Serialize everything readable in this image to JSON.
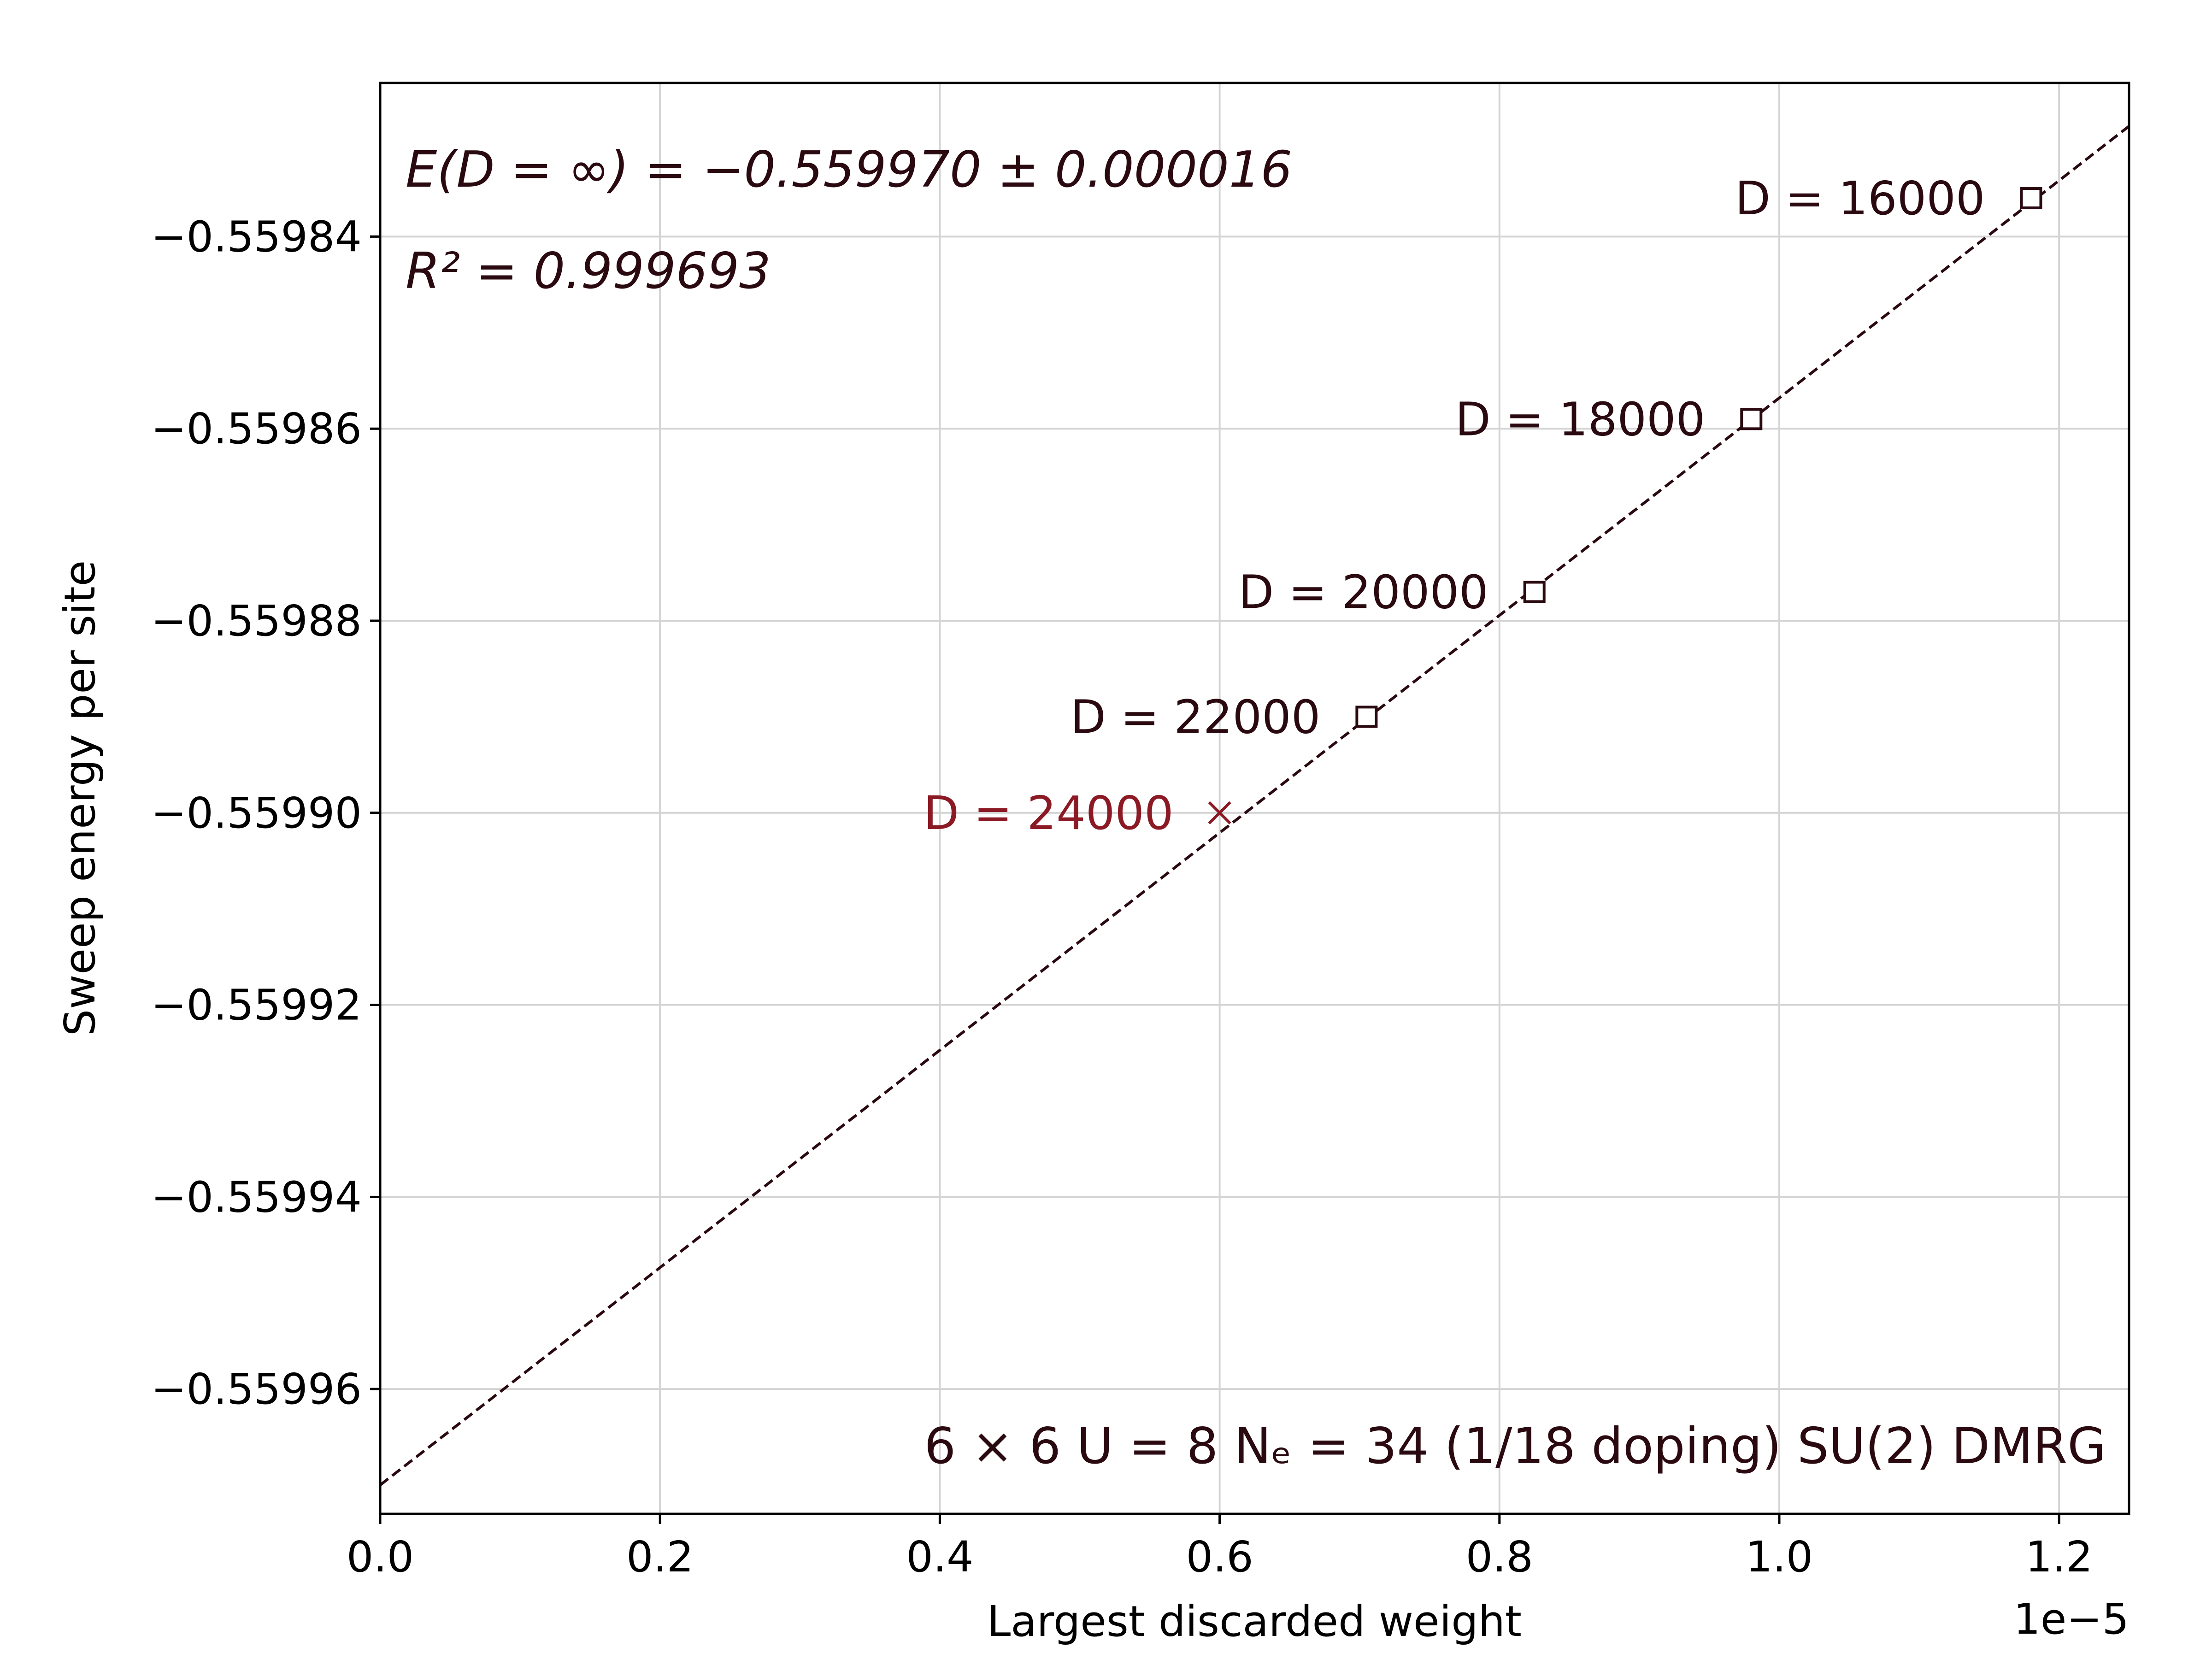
{
  "chart_data": {
    "type": "scatter",
    "xlabel": "Largest discarded weight",
    "ylabel": "Sweep energy per site",
    "x_offset_label": "1e−5",
    "xlim": [
      0.0,
      1.25e-05
    ],
    "ylim": [
      -0.559973,
      -0.559824
    ],
    "grid": true,
    "x_ticks": [
      {
        "value": 0.0,
        "label": "0.0"
      },
      {
        "value": 2e-06,
        "label": "0.2"
      },
      {
        "value": 4e-06,
        "label": "0.4"
      },
      {
        "value": 6e-06,
        "label": "0.6"
      },
      {
        "value": 8e-06,
        "label": "0.8"
      },
      {
        "value": 1e-05,
        "label": "1.0"
      },
      {
        "value": 1.2e-05,
        "label": "1.2"
      }
    ],
    "y_ticks": [
      {
        "value": -0.55984,
        "label": "−0.55984"
      },
      {
        "value": -0.55986,
        "label": "−0.55986"
      },
      {
        "value": -0.55988,
        "label": "−0.55988"
      },
      {
        "value": -0.5599,
        "label": "−0.55990"
      },
      {
        "value": -0.55992,
        "label": "−0.55992"
      },
      {
        "value": -0.55994,
        "label": "−0.55994"
      },
      {
        "value": -0.55996,
        "label": "−0.55996"
      }
    ],
    "series": [
      {
        "marker": "square",
        "color": "#2a0a10",
        "points": [
          {
            "x": 1.18e-05,
            "y": -0.559836,
            "label": "D = 16000"
          },
          {
            "x": 9.8e-06,
            "y": -0.559859,
            "label": "D = 18000"
          },
          {
            "x": 8.25e-06,
            "y": -0.559877,
            "label": "D = 20000"
          },
          {
            "x": 7.05e-06,
            "y": -0.55989,
            "label": "D = 22000"
          }
        ]
      },
      {
        "marker": "x",
        "color": "#8b1a25",
        "points": [
          {
            "x": 6e-06,
            "y": -0.5599,
            "label": "D = 24000"
          }
        ]
      }
    ],
    "fit_line": {
      "style": "dashed",
      "color": "#2a0a10",
      "points": [
        {
          "x": 0.0,
          "y": -0.55997
        },
        {
          "x": 1.25e-05,
          "y": -0.5598285
        }
      ]
    },
    "annotations": {
      "extrapolation": "E(D = ∞) = −0.559970 ± 0.000016",
      "r_squared": "R² = 0.999693",
      "system": "6 × 6 U = 8 Nₑ = 34 (1/18 doping) SU(2) DMRG"
    }
  }
}
